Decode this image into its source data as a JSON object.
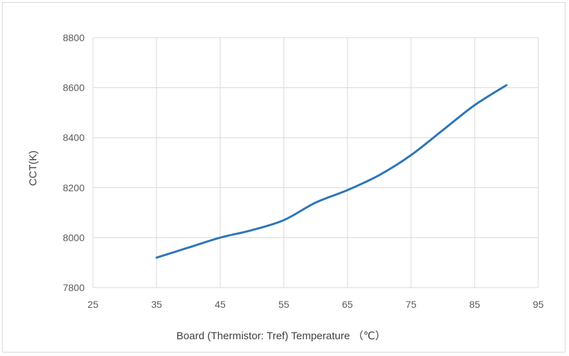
{
  "chart_data": {
    "type": "line",
    "xlabel": "Board (Thermistor: Tref) Temperature （℃）",
    "ylabel": "CCT(K)",
    "xlim": [
      25,
      95
    ],
    "ylim": [
      7800,
      8800
    ],
    "xticks": [
      25,
      35,
      45,
      55,
      65,
      75,
      85,
      95
    ],
    "yticks": [
      7800,
      8000,
      8200,
      8400,
      8600,
      8800
    ],
    "x_tick_labels": [
      "25",
      "35",
      "45",
      "55",
      "65",
      "75",
      "85",
      "95"
    ],
    "y_tick_labels": [
      "7800",
      "8000",
      "8200",
      "8400",
      "8600",
      "8800"
    ],
    "grid": true,
    "series": [
      {
        "color": "#2e75b6",
        "x": [
          35,
          40,
          45,
          50,
          55,
          60,
          65,
          70,
          75,
          80,
          85,
          90
        ],
        "y": [
          7920,
          7960,
          8000,
          8030,
          8070,
          8140,
          8190,
          8250,
          8330,
          8430,
          8530,
          8610
        ]
      }
    ]
  }
}
